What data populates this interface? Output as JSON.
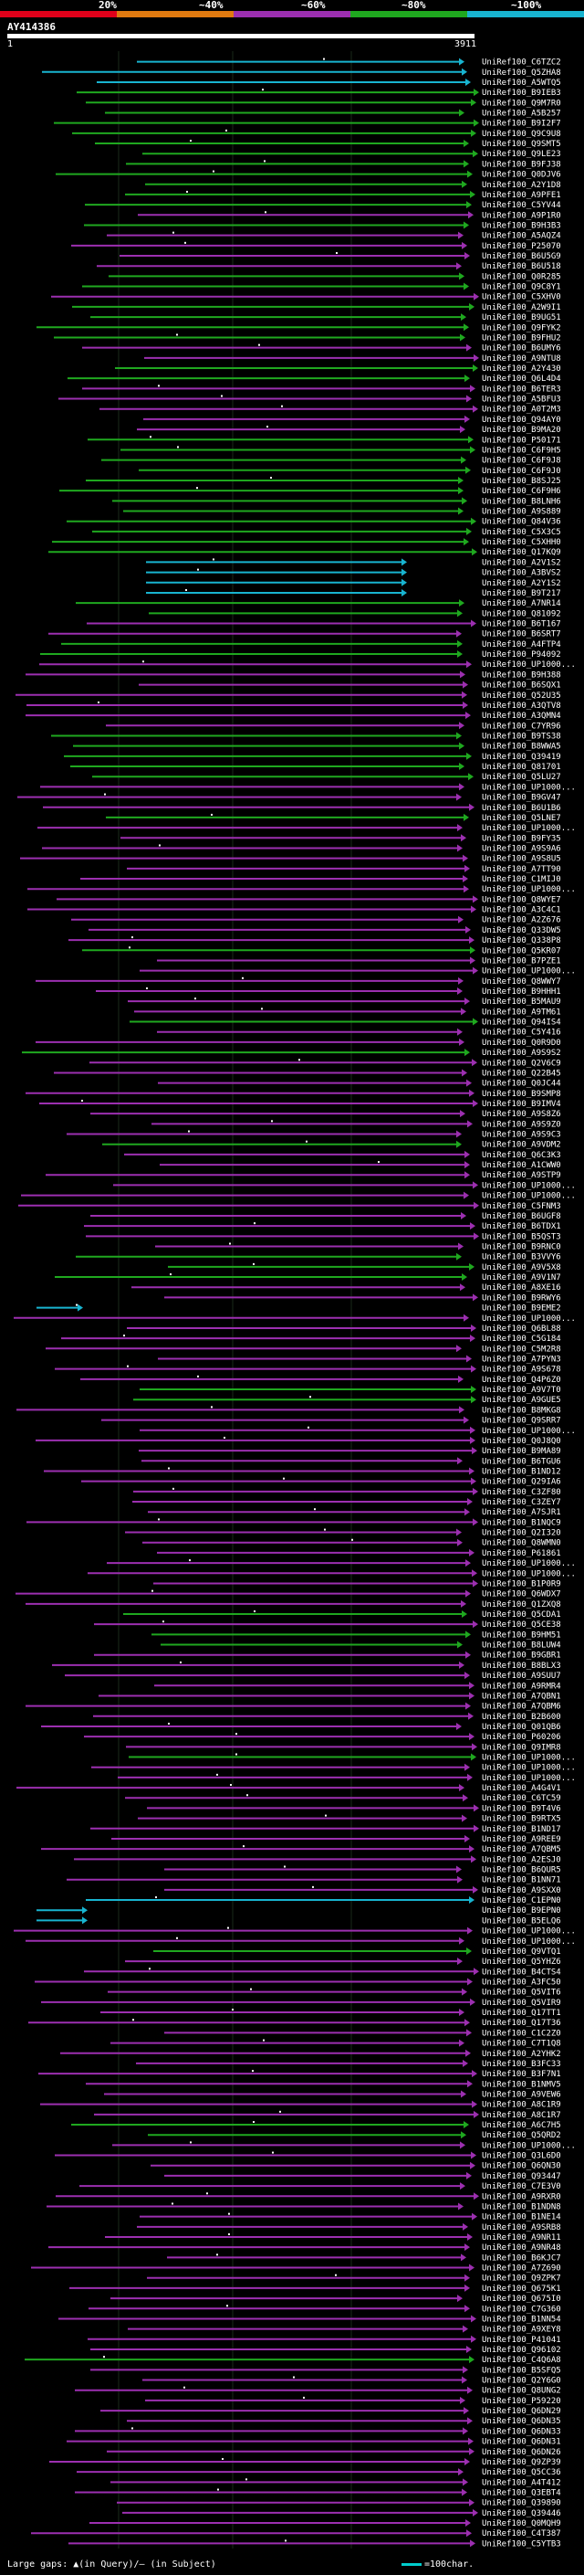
{
  "legend": {
    "bins": [
      {
        "label": "20%",
        "color": "#e0001a"
      },
      {
        "label": "~40%",
        "color": "#e07a10"
      },
      {
        "label": "~60%",
        "color": "#9c2fb0"
      },
      {
        "label": "~80%",
        "color": "#1fa81f"
      },
      {
        "label": "~100%",
        "color": "#18b4d0"
      }
    ]
  },
  "query": {
    "id": "AY414386",
    "start": "1",
    "end": "3911"
  },
  "footer": {
    "gaps_note": "Large gaps: ▲(in Query)/– (in Subject)",
    "scale_note": "=100char."
  },
  "hits": [
    {
      "id": "UniRef100_C6TZC2",
      "color": "#18b4d0"
    },
    {
      "id": "UniRef100_Q5ZHA8",
      "color": "#18b4d0"
    },
    {
      "id": "UniRef100_A5WTQ5",
      "color": "#18b4d0"
    },
    {
      "id": "UniRef100_B9IEB3",
      "color": "#1fa81f"
    },
    {
      "id": "UniRef100_Q9M7R0",
      "color": "#1fa81f"
    },
    {
      "id": "UniRef100_A5B257",
      "color": "#1fa81f"
    },
    {
      "id": "UniRef100_B9I2F7",
      "color": "#1fa81f"
    },
    {
      "id": "UniRef100_Q9C9U8",
      "color": "#1fa81f"
    },
    {
      "id": "UniRef100_Q9SMT5",
      "color": "#1fa81f"
    },
    {
      "id": "UniRef100_Q9LE23",
      "color": "#1fa81f"
    },
    {
      "id": "UniRef100_B9FJ38",
      "color": "#1fa81f"
    },
    {
      "id": "UniRef100_Q0DJV6",
      "color": "#1fa81f"
    },
    {
      "id": "UniRef100_A2Y1D8",
      "color": "#1fa81f"
    },
    {
      "id": "UniRef100_A9PFE1",
      "color": "#1fa81f"
    },
    {
      "id": "UniRef100_C5YV44",
      "color": "#1fa81f"
    },
    {
      "id": "UniRef100_A9P1R0",
      "color": "#9c2fb0"
    },
    {
      "id": "UniRef100_B9H3B3",
      "color": "#1fa81f"
    },
    {
      "id": "UniRef100_A5AQZ4",
      "color": "#9c2fb0"
    },
    {
      "id": "UniRef100_P25070",
      "color": "#9c2fb0"
    },
    {
      "id": "UniRef100_B6U5G9",
      "color": "#9c2fb0"
    },
    {
      "id": "UniRef100_B6U518",
      "color": "#9c2fb0"
    },
    {
      "id": "UniRef100_Q0R285",
      "color": "#1fa81f"
    },
    {
      "id": "UniRef100_Q9C8Y1",
      "color": "#1fa81f"
    },
    {
      "id": "UniRef100_C5XHV0",
      "color": "#9c2fb0"
    },
    {
      "id": "UniRef100_A2W9I1",
      "color": "#1fa81f"
    },
    {
      "id": "UniRef100_B9UG51",
      "color": "#1fa81f"
    },
    {
      "id": "UniRef100_Q9FYK2",
      "color": "#1fa81f"
    },
    {
      "id": "UniRef100_B9FHU2",
      "color": "#1fa81f"
    },
    {
      "id": "UniRef100_B6UMY6",
      "color": "#9c2fb0"
    },
    {
      "id": "UniRef100_A9NTU8",
      "color": "#9c2fb0"
    },
    {
      "id": "UniRef100_A2Y430",
      "color": "#1fa81f"
    },
    {
      "id": "UniRef100_Q6L4D4",
      "color": "#1fa81f"
    },
    {
      "id": "UniRef100_B6TER3",
      "color": "#9c2fb0"
    },
    {
      "id": "UniRef100_A5BFU3",
      "color": "#9c2fb0"
    },
    {
      "id": "UniRef100_A0T2M3",
      "color": "#9c2fb0"
    },
    {
      "id": "UniRef100_Q94AY0",
      "color": "#9c2fb0"
    },
    {
      "id": "UniRef100_B9MA20",
      "color": "#9c2fb0"
    },
    {
      "id": "UniRef100_P50171",
      "color": "#1fa81f"
    },
    {
      "id": "UniRef100_C6F9H5",
      "color": "#1fa81f"
    },
    {
      "id": "UniRef100_C6F9J8",
      "color": "#1fa81f"
    },
    {
      "id": "UniRef100_C6F9J0",
      "color": "#1fa81f"
    },
    {
      "id": "UniRef100_B8SJ25",
      "color": "#1fa81f"
    },
    {
      "id": "UniRef100_C6F9H6",
      "color": "#1fa81f"
    },
    {
      "id": "UniRef100_B8LNH6",
      "color": "#1fa81f"
    },
    {
      "id": "UniRef100_A9S889",
      "color": "#1fa81f"
    },
    {
      "id": "UniRef100_Q84V36",
      "color": "#1fa81f"
    },
    {
      "id": "UniRef100_C5X3C5",
      "color": "#1fa81f"
    },
    {
      "id": "UniRef100_C5XHH0",
      "color": "#1fa81f"
    },
    {
      "id": "UniRef100_Q17KQ9",
      "color": "#1fa81f"
    },
    {
      "id": "UniRef100_A2V1S2",
      "color": "#18b4d0"
    },
    {
      "id": "UniRef100_A3BVS2",
      "color": "#18b4d0"
    },
    {
      "id": "UniRef100_A2Y1S2",
      "color": "#18b4d0"
    },
    {
      "id": "UniRef100_B9T217",
      "color": "#18b4d0"
    },
    {
      "id": "UniRef100_A7NR14",
      "color": "#1fa81f"
    },
    {
      "id": "UniRef100_Q81092",
      "color": "#1fa81f"
    },
    {
      "id": "UniRef100_B6T167",
      "color": "#9c2fb0"
    },
    {
      "id": "UniRef100_B6SRT7",
      "color": "#9c2fb0"
    },
    {
      "id": "UniRef100_A4FTP4",
      "color": "#1fa81f"
    },
    {
      "id": "UniRef100_P94092",
      "color": "#1fa81f"
    },
    {
      "id": "UniRef100_UP1000...",
      "color": "#9c2fb0"
    },
    {
      "id": "UniRef100_B9H388",
      "color": "#9c2fb0"
    },
    {
      "id": "UniRef100_B6SQX1",
      "color": "#9c2fb0"
    },
    {
      "id": "UniRef100_Q52U35",
      "color": "#9c2fb0"
    },
    {
      "id": "UniRef100_A3QTV8",
      "color": "#9c2fb0"
    },
    {
      "id": "UniRef100_A3QMN4",
      "color": "#9c2fb0"
    },
    {
      "id": "UniRef100_C7YR96",
      "color": "#9c2fb0"
    },
    {
      "id": "UniRef100_B9TS38",
      "color": "#1fa81f"
    },
    {
      "id": "UniRef100_B8WWA5",
      "color": "#1fa81f"
    },
    {
      "id": "UniRef100_Q39419",
      "color": "#1fa81f"
    },
    {
      "id": "UniRef100_Q81701",
      "color": "#1fa81f"
    },
    {
      "id": "UniRef100_Q5LU27",
      "color": "#1fa81f"
    },
    {
      "id": "UniRef100_UP1000...",
      "color": "#9c2fb0"
    },
    {
      "id": "UniRef100_B9GV47",
      "color": "#9c2fb0"
    },
    {
      "id": "UniRef100_B6U1B6",
      "color": "#9c2fb0"
    },
    {
      "id": "UniRef100_Q5LNE7",
      "color": "#1fa81f"
    },
    {
      "id": "UniRef100_UP1000...",
      "color": "#9c2fb0"
    },
    {
      "id": "UniRef100_B9FY35",
      "color": "#9c2fb0"
    },
    {
      "id": "UniRef100_A9S9A6",
      "color": "#9c2fb0"
    },
    {
      "id": "UniRef100_A9S8U5",
      "color": "#9c2fb0"
    },
    {
      "id": "UniRef100_A7TT90",
      "color": "#9c2fb0"
    },
    {
      "id": "UniRef100_C1MIJ0",
      "color": "#9c2fb0"
    },
    {
      "id": "UniRef100_UP1000...",
      "color": "#9c2fb0"
    },
    {
      "id": "UniRef100_Q8WYE7",
      "color": "#9c2fb0"
    },
    {
      "id": "UniRef100_A3C4C1",
      "color": "#9c2fb0"
    },
    {
      "id": "UniRef100_A2Z676",
      "color": "#9c2fb0"
    },
    {
      "id": "UniRef100_Q33DW5",
      "color": "#9c2fb0"
    },
    {
      "id": "UniRef100_Q338P8",
      "color": "#9c2fb0"
    },
    {
      "id": "UniRef100_Q5KR07",
      "color": "#1fa81f"
    },
    {
      "id": "UniRef100_B7PZE1",
      "color": "#9c2fb0"
    },
    {
      "id": "UniRef100_UP1000...",
      "color": "#9c2fb0"
    },
    {
      "id": "UniRef100_Q8WWY7",
      "color": "#9c2fb0"
    },
    {
      "id": "UniRef100_B9HHH1",
      "color": "#9c2fb0"
    },
    {
      "id": "UniRef100_B5MAU9",
      "color": "#9c2fb0"
    },
    {
      "id": "UniRef100_A9TM61",
      "color": "#9c2fb0"
    },
    {
      "id": "UniRef100_Q94IS4",
      "color": "#1fa81f"
    },
    {
      "id": "UniRef100_C5Y416",
      "color": "#9c2fb0"
    },
    {
      "id": "UniRef100_Q0R9D0",
      "color": "#9c2fb0"
    },
    {
      "id": "UniRef100_A9S9S2",
      "color": "#1fa81f"
    },
    {
      "id": "UniRef100_Q2V6C9",
      "color": "#9c2fb0"
    },
    {
      "id": "UniRef100_Q22B45",
      "color": "#9c2fb0"
    },
    {
      "id": "UniRef100_Q0JC44",
      "color": "#9c2fb0"
    },
    {
      "id": "UniRef100_B9SMP8",
      "color": "#9c2fb0"
    },
    {
      "id": "UniRef100_B9IMV4",
      "color": "#9c2fb0"
    },
    {
      "id": "UniRef100_A9S8Z6",
      "color": "#9c2fb0"
    },
    {
      "id": "UniRef100_A9S9Z0",
      "color": "#9c2fb0"
    },
    {
      "id": "UniRef100_A9S9C3",
      "color": "#9c2fb0"
    },
    {
      "id": "UniRef100_A9VDM2",
      "color": "#1fa81f"
    },
    {
      "id": "UniRef100_Q6C3K3",
      "color": "#9c2fb0"
    },
    {
      "id": "UniRef100_A1CWW0",
      "color": "#9c2fb0"
    },
    {
      "id": "UniRef100_A9STP9",
      "color": "#9c2fb0"
    },
    {
      "id": "UniRef100_UP1000...",
      "color": "#9c2fb0"
    },
    {
      "id": "UniRef100_UP1000...",
      "color": "#9c2fb0"
    },
    {
      "id": "UniRef100_C5FNM3",
      "color": "#9c2fb0"
    },
    {
      "id": "UniRef100_B6UGF8",
      "color": "#9c2fb0"
    },
    {
      "id": "UniRef100_B6TDX1",
      "color": "#9c2fb0"
    },
    {
      "id": "UniRef100_B5QST3",
      "color": "#9c2fb0"
    },
    {
      "id": "UniRef100_B9RNC0",
      "color": "#9c2fb0"
    },
    {
      "id": "UniRef100_B3VVY6",
      "color": "#1fa81f"
    },
    {
      "id": "UniRef100_A9V5X8",
      "color": "#1fa81f"
    },
    {
      "id": "UniRef100_A9V1N7",
      "color": "#1fa81f"
    },
    {
      "id": "UniRef100_A8XE16",
      "color": "#9c2fb0"
    },
    {
      "id": "UniRef100_B9RWY6",
      "color": "#9c2fb0"
    },
    {
      "id": "UniRef100_B9EME2",
      "color": "#18b4d0"
    },
    {
      "id": "UniRef100_UP1000...",
      "color": "#9c2fb0"
    },
    {
      "id": "UniRef100_Q6BL88",
      "color": "#9c2fb0"
    },
    {
      "id": "UniRef100_C5G184",
      "color": "#9c2fb0"
    },
    {
      "id": "UniRef100_C5M2R8",
      "color": "#9c2fb0"
    },
    {
      "id": "UniRef100_A7PYN3",
      "color": "#9c2fb0"
    },
    {
      "id": "UniRef100_A9S678",
      "color": "#9c2fb0"
    },
    {
      "id": "UniRef100_Q4P6Z0",
      "color": "#9c2fb0"
    },
    {
      "id": "UniRef100_A9V7T0",
      "color": "#1fa81f"
    },
    {
      "id": "UniRef100_A9GUE5",
      "color": "#1fa81f"
    },
    {
      "id": "UniRef100_B8MKG8",
      "color": "#9c2fb0"
    },
    {
      "id": "UniRef100_Q9SRR7",
      "color": "#9c2fb0"
    },
    {
      "id": "UniRef100_UP1000...",
      "color": "#9c2fb0"
    },
    {
      "id": "UniRef100_Q0J8Q0",
      "color": "#9c2fb0"
    },
    {
      "id": "UniRef100_B9MA89",
      "color": "#9c2fb0"
    },
    {
      "id": "UniRef100_B6TGU6",
      "color": "#9c2fb0"
    },
    {
      "id": "UniRef100_B1ND12",
      "color": "#9c2fb0"
    },
    {
      "id": "UniRef100_Q29IA6",
      "color": "#9c2fb0"
    },
    {
      "id": "UniRef100_C3ZF80",
      "color": "#9c2fb0"
    },
    {
      "id": "UniRef100_C3ZEY7",
      "color": "#9c2fb0"
    },
    {
      "id": "UniRef100_A7SJR1",
      "color": "#9c2fb0"
    },
    {
      "id": "UniRef100_B1NQC9",
      "color": "#9c2fb0"
    },
    {
      "id": "UniRef100_Q2I320",
      "color": "#9c2fb0"
    },
    {
      "id": "UniRef100_Q8WMN0",
      "color": "#9c2fb0"
    },
    {
      "id": "UniRef100_P61861",
      "color": "#9c2fb0"
    },
    {
      "id": "UniRef100_UP1000...",
      "color": "#9c2fb0"
    },
    {
      "id": "UniRef100_UP1000...",
      "color": "#9c2fb0"
    },
    {
      "id": "UniRef100_B1P0R9",
      "color": "#9c2fb0"
    },
    {
      "id": "UniRef100_Q6WDX7",
      "color": "#9c2fb0"
    },
    {
      "id": "UniRef100_Q1ZXQ8",
      "color": "#9c2fb0"
    },
    {
      "id": "UniRef100_Q5CDA1",
      "color": "#1fa81f"
    },
    {
      "id": "UniRef100_Q5CE38",
      "color": "#9c2fb0"
    },
    {
      "id": "UniRef100_B9HM51",
      "color": "#1fa81f"
    },
    {
      "id": "UniRef100_B8LUW4",
      "color": "#1fa81f"
    },
    {
      "id": "UniRef100_B9GBR1",
      "color": "#9c2fb0"
    },
    {
      "id": "UniRef100_B8BLX3",
      "color": "#9c2fb0"
    },
    {
      "id": "UniRef100_A9SUU7",
      "color": "#9c2fb0"
    },
    {
      "id": "UniRef100_A9RMR4",
      "color": "#9c2fb0"
    },
    {
      "id": "UniRef100_A7QBN1",
      "color": "#9c2fb0"
    },
    {
      "id": "UniRef100_A7QBM6",
      "color": "#9c2fb0"
    },
    {
      "id": "UniRef100_B2B600",
      "color": "#9c2fb0"
    },
    {
      "id": "UniRef100_Q01QB6",
      "color": "#9c2fb0"
    },
    {
      "id": "UniRef100_P60206",
      "color": "#9c2fb0"
    },
    {
      "id": "UniRef100_Q9IMR8",
      "color": "#9c2fb0"
    },
    {
      "id": "UniRef100_UP1000...",
      "color": "#1fa81f"
    },
    {
      "id": "UniRef100_UP1000...",
      "color": "#9c2fb0"
    },
    {
      "id": "UniRef100_UP1000...",
      "color": "#9c2fb0"
    },
    {
      "id": "UniRef100_A4G4V1",
      "color": "#9c2fb0"
    },
    {
      "id": "UniRef100_C6TC59",
      "color": "#9c2fb0"
    },
    {
      "id": "UniRef100_B9T4V6",
      "color": "#9c2fb0"
    },
    {
      "id": "UniRef100_B9RTX5",
      "color": "#9c2fb0"
    },
    {
      "id": "UniRef100_B1ND17",
      "color": "#9c2fb0"
    },
    {
      "id": "UniRef100_A9REE9",
      "color": "#9c2fb0"
    },
    {
      "id": "UniRef100_A7QBM5",
      "color": "#9c2fb0"
    },
    {
      "id": "UniRef100_A2ESJ0",
      "color": "#9c2fb0"
    },
    {
      "id": "UniRef100_B6QUR5",
      "color": "#9c2fb0"
    },
    {
      "id": "UniRef100_B1NN71",
      "color": "#9c2fb0"
    },
    {
      "id": "UniRef100_A9SXX0",
      "color": "#9c2fb0"
    },
    {
      "id": "UniRef100_C1EPN0",
      "color": "#18b4d0"
    },
    {
      "id": "UniRef100_B9EPN0",
      "color": "#18b4d0"
    },
    {
      "id": "UniRef100_B5ELQ6",
      "color": "#18b4d0"
    },
    {
      "id": "UniRef100_UP1000...",
      "color": "#9c2fb0"
    },
    {
      "id": "UniRef100_UP1000...",
      "color": "#9c2fb0"
    },
    {
      "id": "UniRef100_Q9VTQ1",
      "color": "#1fa81f"
    },
    {
      "id": "UniRef100_Q5YHZ6",
      "color": "#9c2fb0"
    },
    {
      "id": "UniRef100_B4CTS4",
      "color": "#9c2fb0"
    },
    {
      "id": "UniRef100_A3FC50",
      "color": "#9c2fb0"
    },
    {
      "id": "UniRef100_Q5VIT6",
      "color": "#9c2fb0"
    },
    {
      "id": "UniRef100_Q5VIR9",
      "color": "#9c2fb0"
    },
    {
      "id": "UniRef100_Q17TT1",
      "color": "#9c2fb0"
    },
    {
      "id": "UniRef100_Q17T36",
      "color": "#9c2fb0"
    },
    {
      "id": "UniRef100_C1C2Z0",
      "color": "#9c2fb0"
    },
    {
      "id": "UniRef100_C7T1Q8",
      "color": "#9c2fb0"
    },
    {
      "id": "UniRef100_A2YHK2",
      "color": "#9c2fb0"
    },
    {
      "id": "UniRef100_B3FC33",
      "color": "#9c2fb0"
    },
    {
      "id": "UniRef100_B3F7N1",
      "color": "#9c2fb0"
    },
    {
      "id": "UniRef100_B1NMV5",
      "color": "#9c2fb0"
    },
    {
      "id": "UniRef100_A9VEW6",
      "color": "#9c2fb0"
    },
    {
      "id": "UniRef100_A8C1R9",
      "color": "#9c2fb0"
    },
    {
      "id": "UniRef100_A8C1R7",
      "color": "#9c2fb0"
    },
    {
      "id": "UniRef100_A6C7H5",
      "color": "#1fa81f"
    },
    {
      "id": "UniRef100_Q5QRD2",
      "color": "#1fa81f"
    },
    {
      "id": "UniRef100_UP1000...",
      "color": "#9c2fb0"
    },
    {
      "id": "UniRef100_Q3L6D0",
      "color": "#9c2fb0"
    },
    {
      "id": "UniRef100_Q6QN30",
      "color": "#9c2fb0"
    },
    {
      "id": "UniRef100_Q93447",
      "color": "#9c2fb0"
    },
    {
      "id": "UniRef100_C7E3V0",
      "color": "#9c2fb0"
    },
    {
      "id": "UniRef100_A9RXR0",
      "color": "#9c2fb0"
    },
    {
      "id": "UniRef100_B1NDN8",
      "color": "#9c2fb0"
    },
    {
      "id": "UniRef100_B1NE14",
      "color": "#9c2fb0"
    },
    {
      "id": "UniRef100_A9SRB8",
      "color": "#9c2fb0"
    },
    {
      "id": "UniRef100_A9NR11",
      "color": "#9c2fb0"
    },
    {
      "id": "UniRef100_A9NR48",
      "color": "#9c2fb0"
    },
    {
      "id": "UniRef100_B6KJC7",
      "color": "#9c2fb0"
    },
    {
      "id": "UniRef100_A7Z690",
      "color": "#9c2fb0"
    },
    {
      "id": "UniRef100_Q9ZPK7",
      "color": "#9c2fb0"
    },
    {
      "id": "UniRef100_Q675K1",
      "color": "#9c2fb0"
    },
    {
      "id": "UniRef100_Q675I0",
      "color": "#9c2fb0"
    },
    {
      "id": "UniRef100_C7G360",
      "color": "#9c2fb0"
    },
    {
      "id": "UniRef100_B1NN54",
      "color": "#9c2fb0"
    },
    {
      "id": "UniRef100_A9XEY8",
      "color": "#9c2fb0"
    },
    {
      "id": "UniRef100_P41041",
      "color": "#9c2fb0"
    },
    {
      "id": "UniRef100_Q96102",
      "color": "#9c2fb0"
    },
    {
      "id": "UniRef100_C4Q6A8",
      "color": "#1fa81f"
    },
    {
      "id": "UniRef100_B5SFQ5",
      "color": "#9c2fb0"
    },
    {
      "id": "UniRef100_Q2Y6G0",
      "color": "#9c2fb0"
    },
    {
      "id": "UniRef100_Q8UNG2",
      "color": "#9c2fb0"
    },
    {
      "id": "UniRef100_P59220",
      "color": "#9c2fb0"
    },
    {
      "id": "UniRef100_Q6DN29",
      "color": "#9c2fb0"
    },
    {
      "id": "UniRef100_Q6DN35",
      "color": "#9c2fb0"
    },
    {
      "id": "UniRef100_Q6DN33",
      "color": "#9c2fb0"
    },
    {
      "id": "UniRef100_Q6DN31",
      "color": "#9c2fb0"
    },
    {
      "id": "UniRef100_Q6DN26",
      "color": "#9c2fb0"
    },
    {
      "id": "UniRef100_Q9ZP39",
      "color": "#9c2fb0"
    },
    {
      "id": "UniRef100_Q5CC36",
      "color": "#9c2fb0"
    },
    {
      "id": "UniRef100_A4T412",
      "color": "#9c2fb0"
    },
    {
      "id": "UniRef100_Q3EBT4",
      "color": "#9c2fb0"
    },
    {
      "id": "UniRef100_Q39890",
      "color": "#9c2fb0"
    },
    {
      "id": "UniRef100_Q39446",
      "color": "#9c2fb0"
    },
    {
      "id": "UniRef100_Q0MQH9",
      "color": "#9c2fb0"
    },
    {
      "id": "UniRef100_C4T387",
      "color": "#9c2fb0"
    },
    {
      "id": "UniRef100_C5YTB3",
      "color": "#9c2fb0"
    }
  ]
}
